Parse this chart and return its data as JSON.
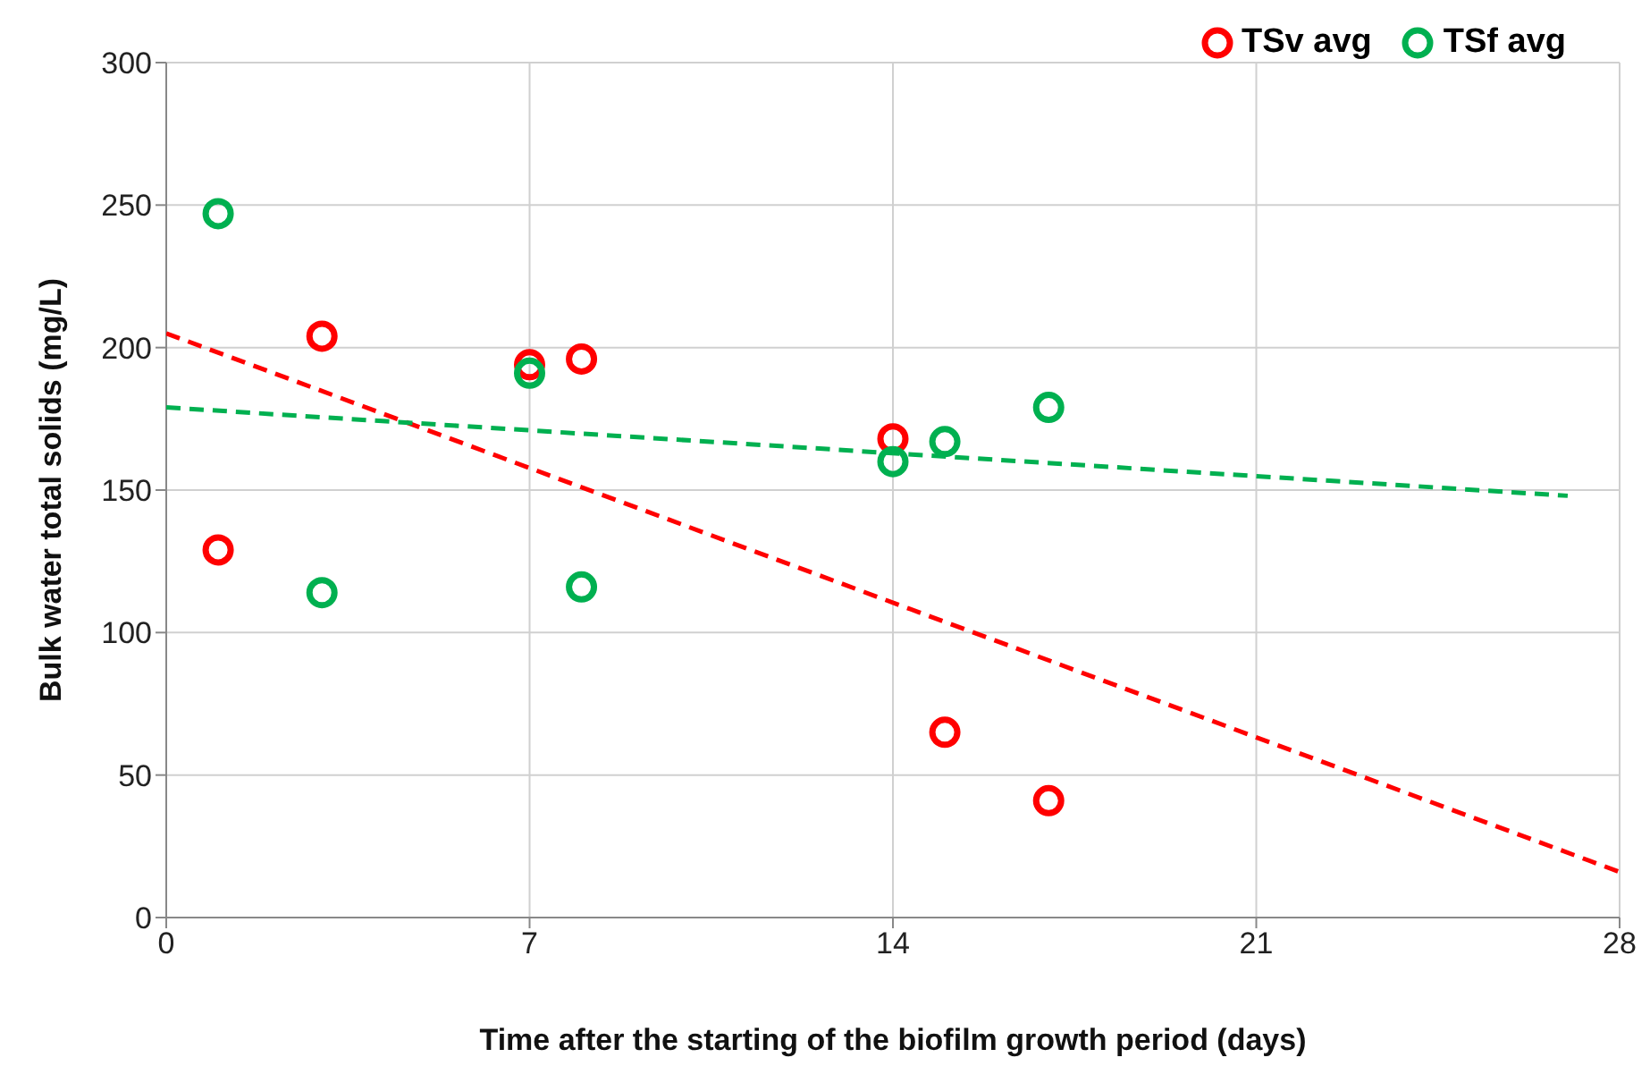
{
  "chart_data": {
    "type": "scatter",
    "xlabel": "Time after the starting of the biofilm growth period (days)",
    "ylabel": "Bulk water total solids (mg/L)",
    "xlim": [
      0,
      28
    ],
    "xticks": [
      0,
      7,
      14,
      21,
      28
    ],
    "ylim": [
      0,
      300
    ],
    "yticks": [
      0,
      50,
      100,
      150,
      200,
      250,
      300
    ],
    "grid": true,
    "legend": "top right",
    "marker": "circle",
    "series": [
      {
        "name": "TSv avg",
        "color": "#ff0000",
        "x": [
          1,
          3,
          7,
          8,
          14,
          15,
          17
        ],
        "values": [
          129,
          204,
          194,
          196,
          168,
          65,
          41
        ]
      },
      {
        "name": "TSf avg",
        "color": "#00b050",
        "x": [
          1,
          3,
          7,
          8,
          14,
          15,
          17
        ],
        "values": [
          247,
          114,
          191,
          116,
          160,
          167,
          179
        ]
      },
      {
        "type": "line",
        "color": "#ff0000",
        "line_style": "dashed",
        "marker": "none",
        "x": [
          0,
          28
        ],
        "values": [
          205,
          16
        ]
      },
      {
        "type": "line",
        "color": "#00b050",
        "line_style": "dashed",
        "marker": "none",
        "x": [
          0,
          27
        ],
        "values": [
          179,
          148
        ]
      }
    ]
  }
}
